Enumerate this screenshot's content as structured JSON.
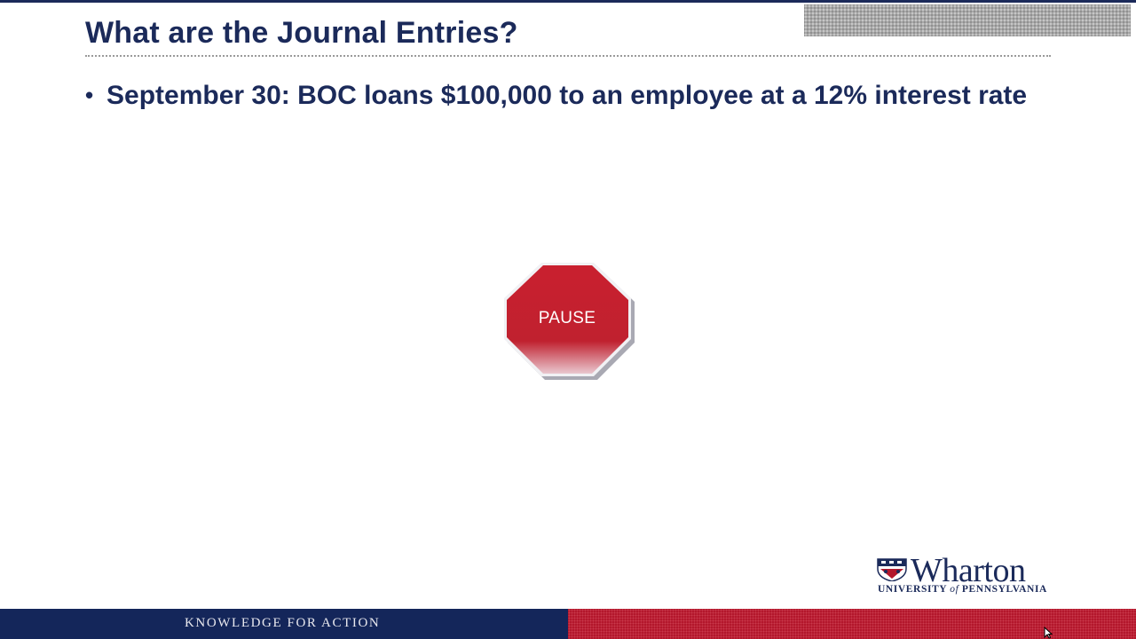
{
  "slide": {
    "title": "What are the Journal Entries?",
    "bullets": [
      {
        "marker": "•",
        "text": "September 30: BOC loans $100,000 to an employee at a 12% interest rate"
      }
    ]
  },
  "pause_sign": {
    "label": "PAUSE",
    "icon": "stop-sign-octagon",
    "color": "#c0212f"
  },
  "logo": {
    "wordmark": "Wharton",
    "subtitle_part1": "UNIVERSITY ",
    "subtitle_italic": "of",
    "subtitle_part2": " PENNSYLVANIA"
  },
  "footer": {
    "tagline": "KNOWLEDGE FOR ACTION",
    "left_color": "#14265a",
    "right_color": "#b3172c"
  },
  "colors": {
    "title": "#1b2a5a",
    "background": "#ffffff"
  }
}
